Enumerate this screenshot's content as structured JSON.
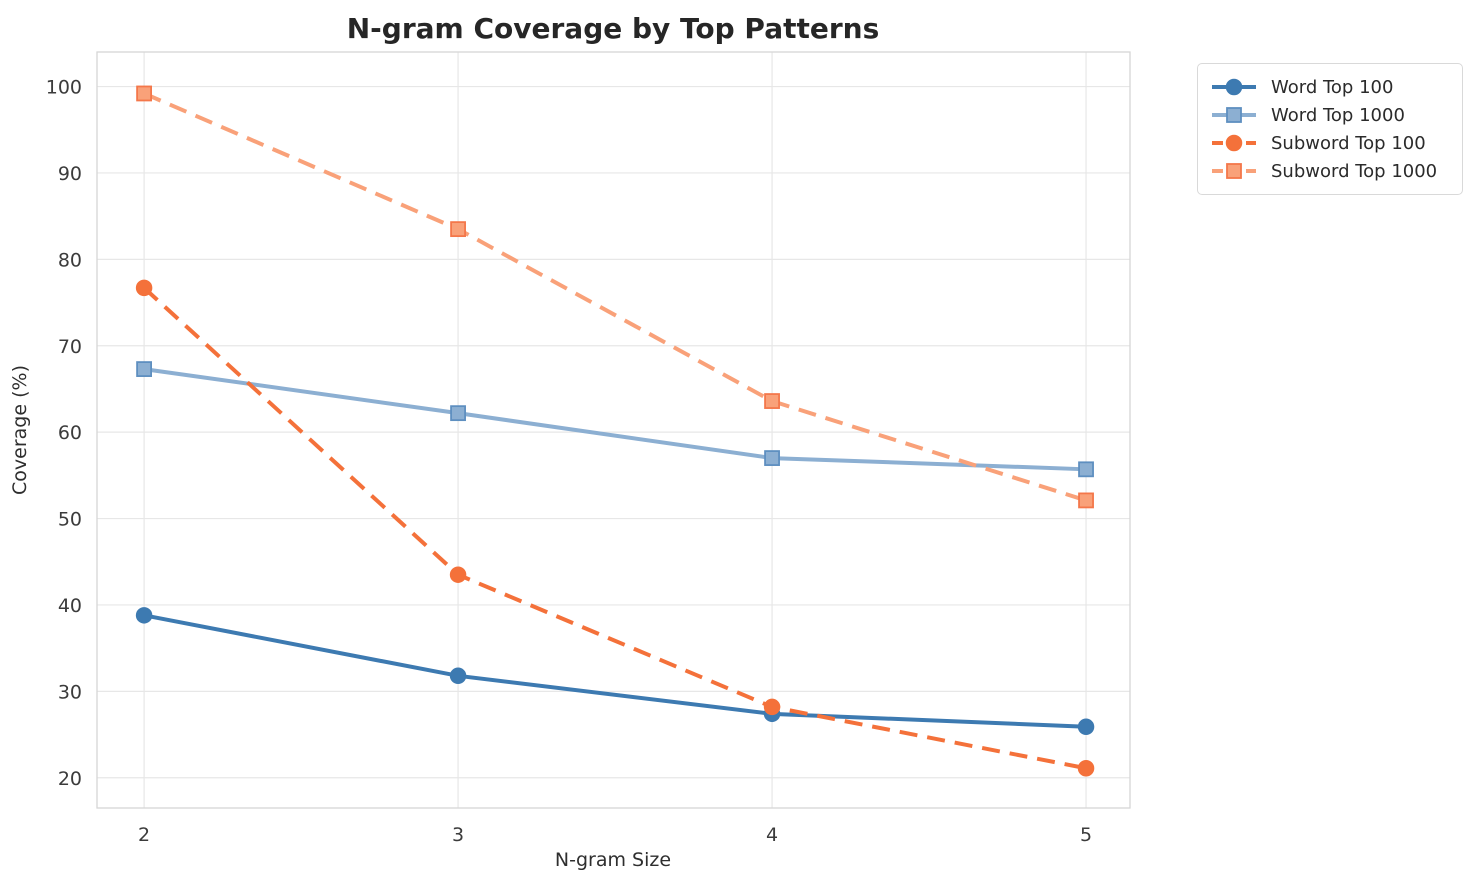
{
  "chart_data": {
    "type": "line",
    "title": "N-gram Coverage by Top Patterns",
    "xlabel": "N-gram Size",
    "ylabel": "Coverage (%)",
    "x": [
      2,
      3,
      4,
      5
    ],
    "xticks": [
      "2",
      "3",
      "4",
      "5"
    ],
    "yticks": [
      "20",
      "30",
      "40",
      "50",
      "60",
      "70",
      "80",
      "90",
      "100"
    ],
    "ytick_values": [
      20,
      30,
      40,
      50,
      60,
      70,
      80,
      90,
      100
    ],
    "xlim": [
      1.85,
      5.14
    ],
    "ylim": [
      16.5,
      104.0
    ],
    "grid": true,
    "grid_color": "#e7e7e7",
    "spine_color": "#d6d6d6",
    "legend_position": "outside-upper-right",
    "legend_border_color": "#d9d9d9",
    "series": [
      {
        "name": "Word Top 100",
        "values": [
          38.8,
          31.8,
          27.4,
          25.9
        ],
        "color": "#3d7ab1",
        "edge_color": "#3d7ab1",
        "marker": "circle",
        "dash": "solid"
      },
      {
        "name": "Word Top 1000",
        "values": [
          67.3,
          62.2,
          57.0,
          55.7
        ],
        "color": "#8cafd2",
        "edge_color": "#5e8fc0",
        "marker": "square",
        "dash": "solid"
      },
      {
        "name": "Subword Top 100",
        "values": [
          76.7,
          43.5,
          28.2,
          21.1
        ],
        "color": "#f4713a",
        "edge_color": "#f4713a",
        "marker": "circle",
        "dash": "dashed"
      },
      {
        "name": "Subword Top 1000",
        "values": [
          99.2,
          83.5,
          63.6,
          52.1
        ],
        "color": "#f9a179",
        "edge_color": "#f4774a",
        "marker": "square",
        "dash": "dashed"
      }
    ]
  }
}
